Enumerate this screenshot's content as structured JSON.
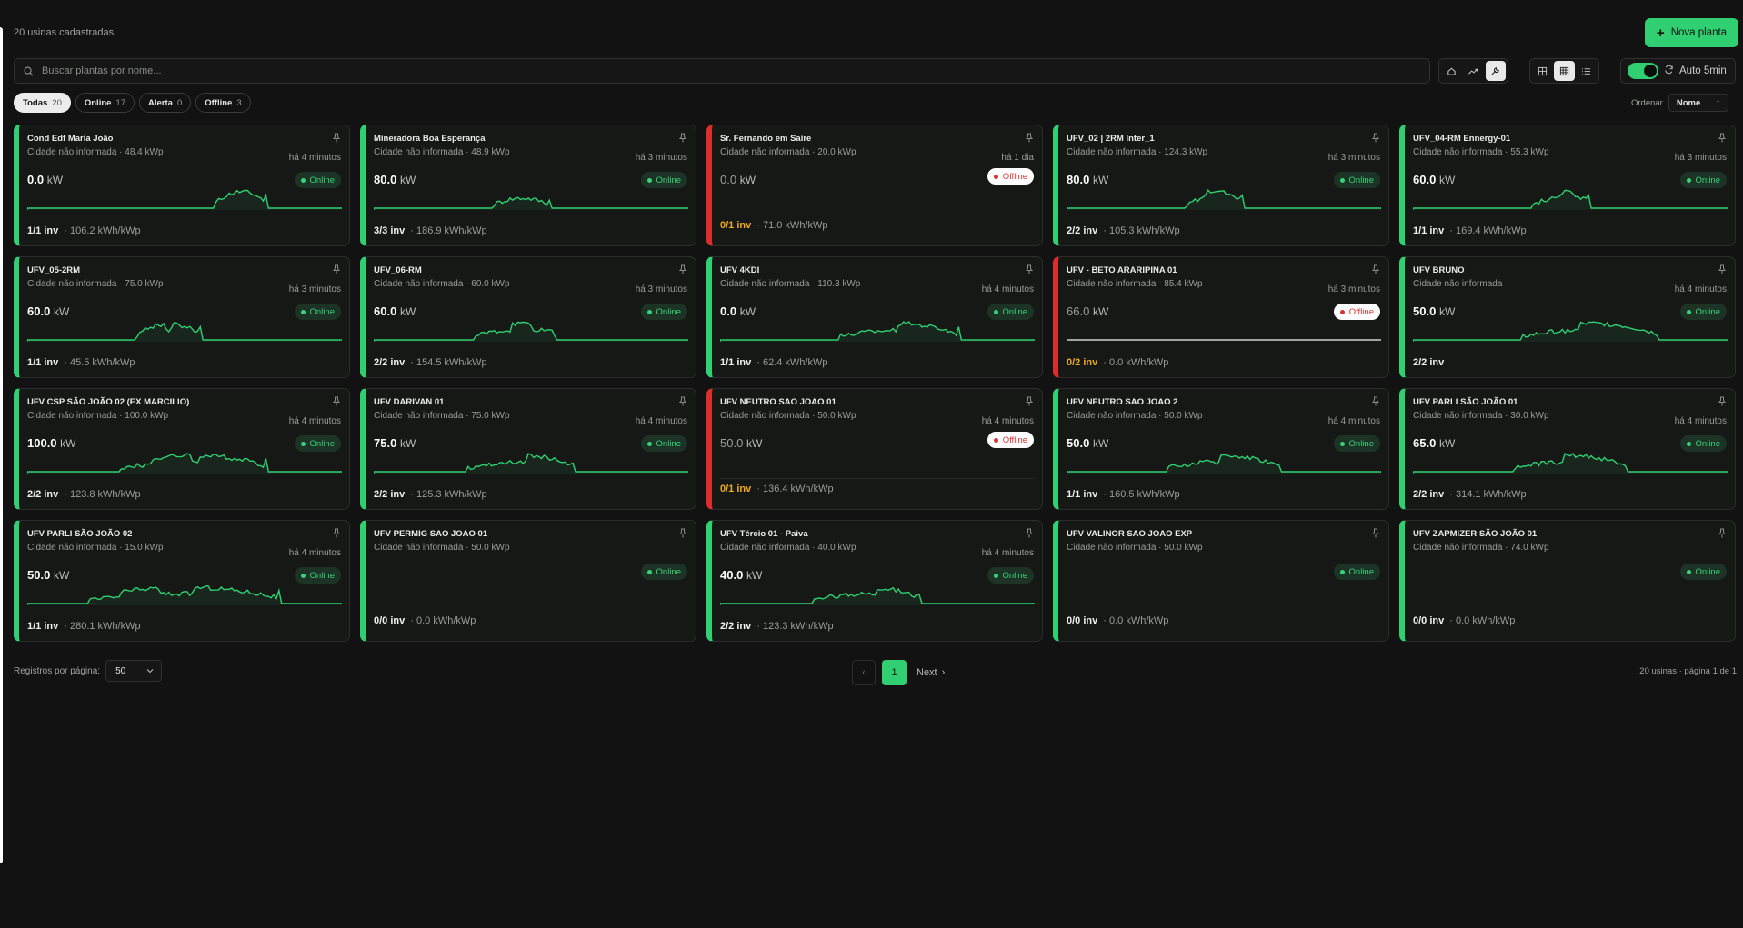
{
  "header": {
    "count_text": "20 usinas cadastradas",
    "new_button": "Nova planta"
  },
  "search": {
    "placeholder": "Buscar plantas por nome..."
  },
  "toolbar": {
    "auto_refresh": "Auto 5min"
  },
  "filters": [
    {
      "label": "Todas",
      "count": "20",
      "active": true
    },
    {
      "label": "Online",
      "count": "17",
      "active": false
    },
    {
      "label": "Alerta",
      "count": "0",
      "active": false
    },
    {
      "label": "Offline",
      "count": "3",
      "active": false
    }
  ],
  "sort": {
    "label": "Ordenar",
    "value": "Nome",
    "direction": "↑"
  },
  "colors": {
    "accent": "#2fcf72",
    "offline": "#dc2d2d",
    "warning": "#f0a91e"
  },
  "plants": [
    {
      "name": "Cond Edf Maria João",
      "subtitle": "Cidade não informada · 48.4 kWp",
      "time": "há 4 minutos",
      "power": "0.0",
      "unit": "kW",
      "status": "Online",
      "inv": "1/1 inv",
      "yield": "· 106.2 kWh/kWp",
      "chart": true
    },
    {
      "name": "Mineradora Boa Esperança",
      "subtitle": "Cidade não informada · 48.9 kWp",
      "time": "há 3 minutos",
      "power": "80.0",
      "unit": "kW",
      "status": "Online",
      "inv": "3/3 inv",
      "yield": "· 186.9 kWh/kWp",
      "chart": true
    },
    {
      "name": "Sr. Fernando em Saire",
      "subtitle": "Cidade não informada · 20.0 kWp",
      "time": "há 1 dia",
      "power": "0.0",
      "unit": "kW",
      "status": "Offline",
      "inv": "0/1 inv",
      "yield": "· 71.0 kWh/kWp",
      "chart": false
    },
    {
      "name": "UFV_02 | 2RM Inter_1",
      "subtitle": "Cidade não informada · 124.3 kWp",
      "time": "há 3 minutos",
      "power": "80.0",
      "unit": "kW",
      "status": "Online",
      "inv": "2/2 inv",
      "yield": "· 105.3 kWh/kWp",
      "chart": true
    },
    {
      "name": "UFV_04-RM Ennergy-01",
      "subtitle": "Cidade não informada · 55.3 kWp",
      "time": "há 3 minutos",
      "power": "60.0",
      "unit": "kW",
      "status": "Online",
      "inv": "1/1 inv",
      "yield": "· 169.4 kWh/kWp",
      "chart": true
    },
    {
      "name": "UFV_05-2RM",
      "subtitle": "Cidade não informada · 75.0 kWp",
      "time": "há 3 minutos",
      "power": "60.0",
      "unit": "kW",
      "status": "Online",
      "inv": "1/1 inv",
      "yield": "· 45.5 kWh/kWp",
      "chart": true
    },
    {
      "name": "UFV_06-RM",
      "subtitle": "Cidade não informada · 60.0 kWp",
      "time": "há 3 minutos",
      "power": "60.0",
      "unit": "kW",
      "status": "Online",
      "inv": "2/2 inv",
      "yield": "· 154.5 kWh/kWp",
      "chart": true
    },
    {
      "name": "UFV 4KDI",
      "subtitle": "Cidade não informada · 110.3 kWp",
      "time": "há 4 minutos",
      "power": "0.0",
      "unit": "kW",
      "status": "Online",
      "inv": "1/1 inv",
      "yield": "· 62.4 kWh/kWp",
      "chart": true
    },
    {
      "name": "UFV - BETO ARARIPINA 01",
      "subtitle": "Cidade não informada · 85.4 kWp",
      "time": "há 3 minutos",
      "power": "66.0",
      "unit": "kW",
      "status": "Offline",
      "inv": "0/2 inv",
      "yield": "· 0.0 kWh/kWp",
      "chart": true
    },
    {
      "name": "UFV BRUNO",
      "subtitle": "Cidade não informada",
      "time": "há 4 minutos",
      "power": "50.0",
      "unit": "kW",
      "status": "Online",
      "inv": "2/2 inv",
      "yield": "",
      "chart": true
    },
    {
      "name": "UFV CSP SÃO JOÃO 02 (EX MARCILIO)",
      "subtitle": "Cidade não informada · 100.0 kWp",
      "time": "há 4 minutos",
      "power": "100.0",
      "unit": "kW",
      "status": "Online",
      "inv": "2/2 inv",
      "yield": "· 123.8 kWh/kWp",
      "chart": true
    },
    {
      "name": "UFV DARIVAN 01",
      "subtitle": "Cidade não informada · 75.0 kWp",
      "time": "há 4 minutos",
      "power": "75.0",
      "unit": "kW",
      "status": "Online",
      "inv": "2/2 inv",
      "yield": "· 125.3 kWh/kWp",
      "chart": true
    },
    {
      "name": "UFV NEUTRO SAO JOAO 01",
      "subtitle": "Cidade não informada · 50.0 kWp",
      "time": "há 4 minutos",
      "power": "50.0",
      "unit": "kW",
      "status": "Offline",
      "inv": "0/1 inv",
      "yield": "· 136.4 kWh/kWp",
      "chart": false
    },
    {
      "name": "UFV NEUTRO SAO JOAO 2",
      "subtitle": "Cidade não informada · 50.0 kWp",
      "time": "há 4 minutos",
      "power": "50.0",
      "unit": "kW",
      "status": "Online",
      "inv": "1/1 inv",
      "yield": "· 160.5 kWh/kWp",
      "chart": true
    },
    {
      "name": "UFV PARLI SÃO JOÃO 01",
      "subtitle": "Cidade não informada · 30.0 kWp",
      "time": "há 4 minutos",
      "power": "65.0",
      "unit": "kW",
      "status": "Online",
      "inv": "2/2 inv",
      "yield": "· 314.1 kWh/kWp",
      "chart": true
    },
    {
      "name": "UFV PARLI SÃO JOÃO 02",
      "subtitle": "Cidade não informada · 15.0 kWp",
      "time": "há 4 minutos",
      "power": "50.0",
      "unit": "kW",
      "status": "Online",
      "inv": "1/1 inv",
      "yield": "· 280.1 kWh/kWp",
      "chart": true
    },
    {
      "name": "UFV PERMIG SAO JOAO 01",
      "subtitle": "Cidade não informada · 50.0 kWp",
      "time": "",
      "power": "",
      "unit": "",
      "status": "Online",
      "inv": "0/0 inv",
      "yield": "· 0.0 kWh/kWp",
      "chart": false
    },
    {
      "name": "UFV Tércio 01 - Paiva",
      "subtitle": "Cidade não informada · 40.0 kWp",
      "time": "há 4 minutos",
      "power": "40.0",
      "unit": "kW",
      "status": "Online",
      "inv": "2/2 inv",
      "yield": "· 123.3 kWh/kWp",
      "chart": true
    },
    {
      "name": "UFV VALINOR SAO JOAO EXP",
      "subtitle": "Cidade não informada · 50.0 kWp",
      "time": "",
      "power": "",
      "unit": "",
      "status": "Online",
      "inv": "0/0 inv",
      "yield": "· 0.0 kWh/kWp",
      "chart": false
    },
    {
      "name": "UFV ZAPMIZER SÃO JOÃO 01",
      "subtitle": "Cidade não informada · 74.0 kWp",
      "time": "",
      "power": "",
      "unit": "",
      "status": "Online",
      "inv": "0/0 inv",
      "yield": "· 0.0 kWh/kWp",
      "chart": false
    }
  ],
  "pagination": {
    "rows_label": "Registros por página:",
    "rows_value": "50",
    "current_page": "1",
    "next_label": "Next",
    "info": "20 usinas · página 1 de 1"
  }
}
